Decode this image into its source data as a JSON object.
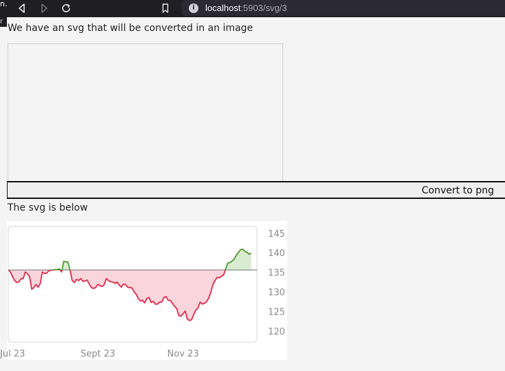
{
  "browser": {
    "edge_text": "n.",
    "edge_text2": "r",
    "url_host": "localhost",
    "url_rest": ":5903/svg/3",
    "icons": [
      "back-icon",
      "forward-icon",
      "reload-icon",
      "bookmark-icon",
      "site-info-icon"
    ]
  },
  "page": {
    "intro": "We have an svg that will be converted in an image",
    "convert_label": "Convert to png",
    "below_text": "The svg is below"
  },
  "chart_data": {
    "type": "area",
    "baseline": 135.7,
    "colors": {
      "above": "#4d9a2e",
      "above_fill": "#d9ecd2",
      "below": "#e0284a",
      "below_fill": "#fbd5dc",
      "baseline": "#8a8a8a"
    },
    "ylim": [
      117.3,
      146.8
    ],
    "y_ticks": [
      145,
      140,
      135,
      130,
      125,
      120
    ],
    "x_ticks": [
      "Jul 23",
      "Sept 23",
      "Nov 23"
    ],
    "x_tick_positions": [
      0,
      60,
      120
    ],
    "x_range": [
      -3,
      172
    ],
    "values": [
      135.7,
      135.2,
      134.0,
      133.0,
      132.5,
      132.7,
      133.5,
      133.5,
      135.2,
      134.7,
      134.0,
      130.8,
      131.2,
      132.0,
      131.3,
      132.2,
      135.2,
      134.8,
      134.9,
      135.5,
      135.6,
      135.7,
      135.8,
      135.8,
      136.0,
      135.2,
      137.9,
      137.8,
      137.7,
      135.7,
      133.0,
      132.5,
      133.3,
      133.0,
      133.5,
      132.8,
      132.9,
      133.1,
      132.1,
      131.2,
      131.0,
      131.2,
      132.0,
      131.7,
      131.5,
      131.9,
      133.5,
      133.0,
      132.7,
      132.6,
      132.3,
      132.6,
      131.9,
      131.3,
      132.1,
      132.0,
      131.3,
      131.2,
      131.1,
      130.1,
      129.5,
      128.4,
      127.8,
      128.0,
      127.3,
      128.4,
      128.7,
      127.4,
      127.7,
      127.0,
      127.0,
      127.5,
      127.5,
      128.7,
      128.9,
      128.0,
      127.9,
      127.2,
      126.4,
      125.9,
      124.1,
      123.9,
      124.5,
      125.2,
      123.2,
      122.8,
      123.0,
      124.3,
      125.5,
      126.0,
      127.5,
      127.0,
      127.2,
      127.6,
      128.5,
      130.0,
      132.0,
      133.0,
      133.8,
      133.7,
      134.1,
      134.4,
      136.0,
      137.5,
      137.6,
      138.0,
      138.5,
      139.5,
      140.2,
      140.9,
      141.0,
      140.4,
      140.2,
      139.7,
      140.0
    ],
    "x_start": -3,
    "x_step": 1.5
  }
}
